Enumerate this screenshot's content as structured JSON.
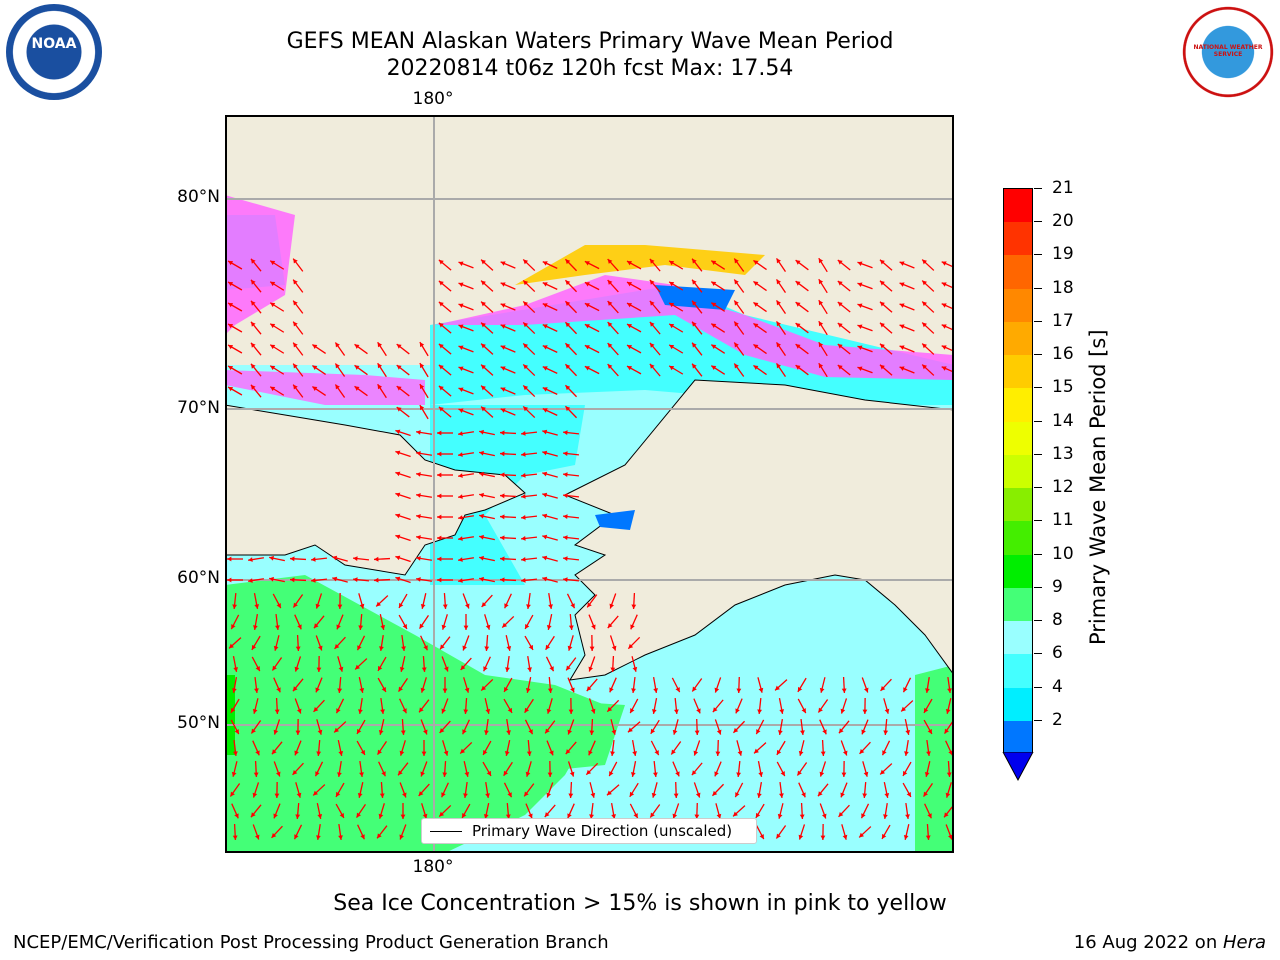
{
  "title": {
    "line1": "GEFS MEAN Alaskan Waters Primary Wave Mean Period",
    "line2": "20220814 t06z 120h fcst   Max: 17.54"
  },
  "logos": {
    "left": {
      "text": "NOAA",
      "icon": "noaa-logo"
    },
    "right": {
      "text": "NATIONAL WEATHER SERVICE",
      "icon": "nws-logo"
    }
  },
  "map": {
    "lat_labels": [
      "80°N",
      "70°N",
      "60°N",
      "50°N"
    ],
    "lon_label_top": "180°",
    "lon_label_bottom": "180°",
    "legend_label": "Primary Wave Direction (unscaled)",
    "arrow_color": "#ff0000",
    "land_color": "#f0ecdc"
  },
  "colorbar": {
    "title": "Primary Wave Mean Period [s]",
    "ticks": [
      "21",
      "20",
      "19",
      "18",
      "17",
      "16",
      "15",
      "14",
      "13",
      "12",
      "11",
      "10",
      "9",
      "8",
      "6",
      "4",
      "2"
    ],
    "colors": [
      "#ff0000",
      "#ff3300",
      "#ff6600",
      "#ff8800",
      "#ffaa00",
      "#ffcc00",
      "#ffee00",
      "#eeff00",
      "#ccff00",
      "#88ee00",
      "#44ee00",
      "#00ee00",
      "#44ff77",
      "#99ffff",
      "#44ffff",
      "#00eeff",
      "#0077ff"
    ],
    "extend_color": "#0000ee"
  },
  "notes": {
    "sea_ice": "Sea Ice Concentration > 15% is shown in pink to yellow"
  },
  "footer": {
    "left": "NCEP/EMC/Verification Post Processing Product Generation Branch",
    "right_date": "16 Aug 2022 on ",
    "right_host": "Hera"
  }
}
